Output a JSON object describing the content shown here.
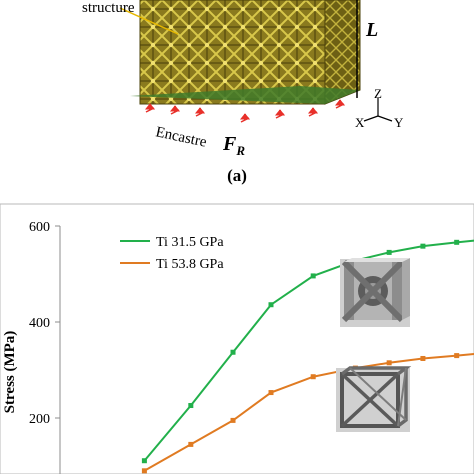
{
  "top_figure": {
    "callout_label": "structure",
    "length_label": "L",
    "support_label": "Encastre",
    "force_label": "F",
    "force_subscript": "R",
    "axis_z": "Z",
    "axis_x": "X",
    "axis_y": "Y",
    "panel_label": "(a)"
  },
  "chart_data": {
    "type": "line",
    "ylabel": "Stress (MPa)",
    "yticks": [
      200,
      400,
      600
    ],
    "ylim": [
      100,
      600
    ],
    "xlim": [
      0,
      1
    ],
    "x": [
      0.2,
      0.31,
      0.41,
      0.5,
      0.6,
      0.7,
      0.78,
      0.86,
      0.94,
      1.0
    ],
    "series": [
      {
        "name": "Ti 31.5 GPa",
        "color": "#22b04b",
        "values": [
          111,
          226,
          337,
          436,
          496,
          528,
          545,
          558,
          566,
          571
        ]
      },
      {
        "name": "Ti 53.8 GPa",
        "color": "#e07b22",
        "values": [
          90,
          145,
          195,
          253,
          286,
          304,
          315,
          324,
          330,
          335
        ]
      }
    ],
    "legend_position": "top-left"
  }
}
